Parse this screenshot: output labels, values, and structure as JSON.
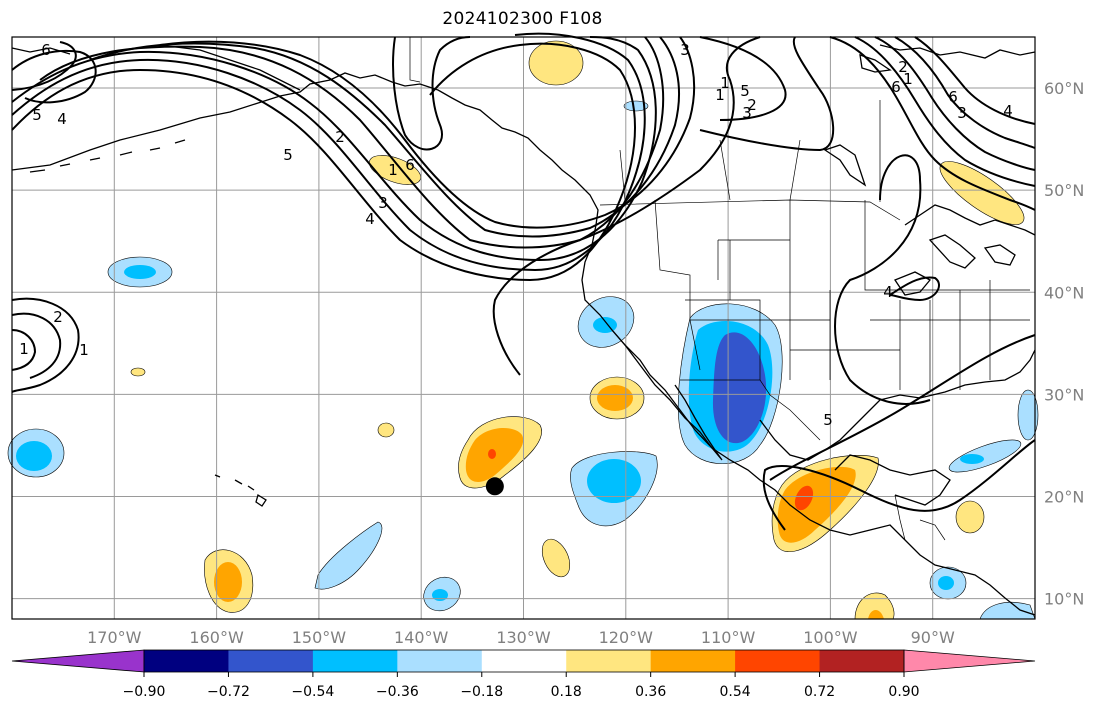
{
  "title": "2024102300 F108",
  "map": {
    "lat_labels": [
      "60°N",
      "50°N",
      "40°N",
      "30°N",
      "20°N",
      "10°N"
    ],
    "lat_values": [
      60,
      50,
      40,
      30,
      20,
      10
    ],
    "lon_labels": [
      "170°W",
      "160°W",
      "150°W",
      "140°W",
      "130°W",
      "120°W",
      "110°W",
      "100°W",
      "90°W"
    ],
    "lon_values": [
      -170,
      -160,
      -150,
      -140,
      -130,
      -120,
      -110,
      -100,
      -90
    ],
    "extent": {
      "lon_min": -180,
      "lon_max": -80,
      "lat_min": 8,
      "lat_max": 65
    },
    "gridlines": true,
    "marker": {
      "name": "storm-position-marker",
      "lon": -132.8,
      "lat": 21.0
    },
    "contour_labels": [
      "6",
      "5",
      "4",
      "3",
      "2",
      "1",
      "1",
      "2",
      "3",
      "4",
      "5",
      "6",
      "1",
      "2",
      "3",
      "1",
      "4",
      "5",
      "6",
      "6",
      "5",
      "4",
      "3",
      "2",
      "1",
      "1"
    ]
  },
  "colorbar": {
    "ticks": [
      "−0.90",
      "−0.72",
      "−0.54",
      "−0.36",
      "−0.18",
      "0.18",
      "0.36",
      "0.54",
      "0.72",
      "0.90"
    ],
    "colors": [
      "#9933cc",
      "#000080",
      "#3355cc",
      "#00bfff",
      "#aadfff",
      "#ffffff",
      "#ffe680",
      "#ffa500",
      "#ff4500",
      "#b22222",
      "#ff88aa"
    ]
  }
}
